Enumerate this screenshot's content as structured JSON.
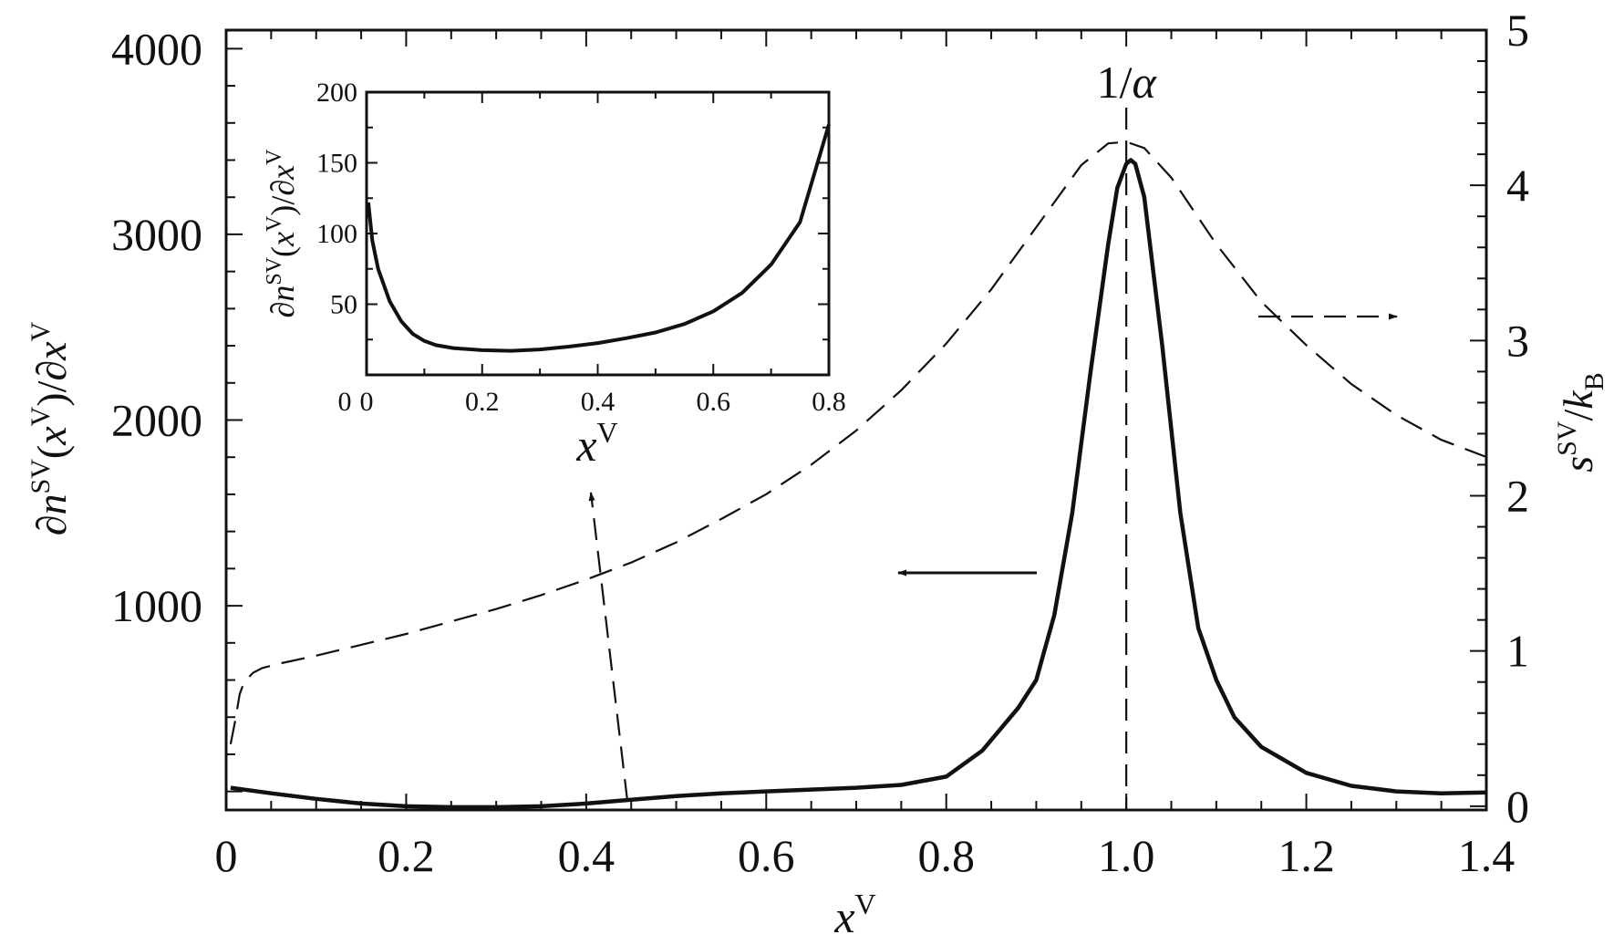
{
  "chart_data": {
    "type": "line",
    "main": {
      "xlabel": {
        "base": "x",
        "sup": "V"
      },
      "ylabel_left": "∂n^SV(x^V)/∂x^V",
      "ylabel_right": "s^SV/k_B",
      "xlim": [
        0,
        1.4
      ],
      "ylim_left": [
        -100,
        4100
      ],
      "ylim_right": [
        -0.0244,
        5
      ],
      "x_ticks": [
        "0",
        "0.2",
        "0.4",
        "0.6",
        "0.8",
        "1.0",
        "1.2",
        "1.4"
      ],
      "x_tick_values": [
        0,
        0.2,
        0.4,
        0.6,
        0.8,
        1.0,
        1.2,
        1.4
      ],
      "y_left_ticks": [
        "1000",
        "2000",
        "3000",
        "4000"
      ],
      "y_left_tick_values": [
        1000,
        2000,
        3000,
        4000
      ],
      "y_right_ticks": [
        "0",
        "1",
        "2",
        "3",
        "4",
        "5"
      ],
      "y_right_tick_values": [
        0,
        1,
        2,
        3,
        4,
        5
      ],
      "vline_label": "1/α",
      "vline_x": 1.0,
      "series": [
        {
          "axis": "left",
          "style": "solid",
          "x": [
            0.005,
            0.05,
            0.1,
            0.15,
            0.2,
            0.25,
            0.3,
            0.35,
            0.4,
            0.45,
            0.5,
            0.55,
            0.6,
            0.65,
            0.7,
            0.75,
            0.8,
            0.84,
            0.88,
            0.9,
            0.92,
            0.94,
            0.96,
            0.98,
            0.99,
            1.0,
            1.005,
            1.01,
            1.02,
            1.04,
            1.06,
            1.08,
            1.1,
            1.12,
            1.15,
            1.2,
            1.25,
            1.3,
            1.35,
            1.4
          ],
          "y": [
            20,
            -10,
            -40,
            -65,
            -80,
            -85,
            -85,
            -80,
            -65,
            -45,
            -25,
            -10,
            0,
            10,
            20,
            35,
            80,
            220,
            450,
            600,
            950,
            1500,
            2250,
            2950,
            3250,
            3380,
            3400,
            3380,
            3200,
            2400,
            1500,
            880,
            600,
            400,
            240,
            100,
            30,
            0,
            -10,
            -5
          ]
        },
        {
          "axis": "right",
          "style": "dashed",
          "x": [
            0.005,
            0.01,
            0.015,
            0.02,
            0.03,
            0.04,
            0.06,
            0.1,
            0.15,
            0.2,
            0.25,
            0.3,
            0.35,
            0.4,
            0.45,
            0.5,
            0.55,
            0.6,
            0.65,
            0.7,
            0.75,
            0.8,
            0.85,
            0.9,
            0.95,
            0.98,
            1.0,
            1.02,
            1.05,
            1.1,
            1.15,
            1.2,
            1.25,
            1.3,
            1.35,
            1.4
          ],
          "y": [
            0.4,
            0.55,
            0.72,
            0.8,
            0.86,
            0.89,
            0.92,
            0.97,
            1.04,
            1.11,
            1.19,
            1.27,
            1.36,
            1.46,
            1.57,
            1.7,
            1.85,
            2.01,
            2.2,
            2.42,
            2.68,
            2.98,
            3.33,
            3.73,
            4.13,
            4.27,
            4.28,
            4.24,
            4.05,
            3.62,
            3.25,
            2.97,
            2.72,
            2.52,
            2.36,
            2.25
          ]
        }
      ],
      "annotations": [
        {
          "label": "left-pointing-arrow",
          "target_axis": "left"
        },
        {
          "label": "right-pointing-dashed-arrow",
          "target_axis": "right"
        },
        {
          "label": "inset-pointer-dashed-arrow"
        }
      ]
    },
    "inset": {
      "xlabel": {
        "base": "x",
        "sup": "V"
      },
      "ylabel": "∂n^SV(x^V)/∂x^V",
      "xlim": [
        0,
        0.8
      ],
      "ylim": [
        0,
        200
      ],
      "x_ticks": [
        "0",
        "0.2",
        "0.4",
        "0.6",
        "0.8"
      ],
      "x_tick_values": [
        0,
        0.2,
        0.4,
        0.6,
        0.8
      ],
      "y_ticks": [
        "50",
        "100",
        "150",
        "200"
      ],
      "y_tick_values": [
        50,
        100,
        150,
        200
      ],
      "series": [
        {
          "style": "solid",
          "x": [
            0.003,
            0.01,
            0.02,
            0.04,
            0.06,
            0.08,
            0.1,
            0.12,
            0.15,
            0.2,
            0.25,
            0.3,
            0.35,
            0.4,
            0.45,
            0.5,
            0.55,
            0.6,
            0.65,
            0.7,
            0.75,
            0.8
          ],
          "y": [
            122,
            95,
            75,
            52,
            38,
            29,
            24,
            21,
            19,
            17.5,
            17,
            18,
            20,
            22.5,
            26,
            30,
            36,
            45,
            58,
            78,
            108,
            177
          ]
        }
      ]
    }
  }
}
